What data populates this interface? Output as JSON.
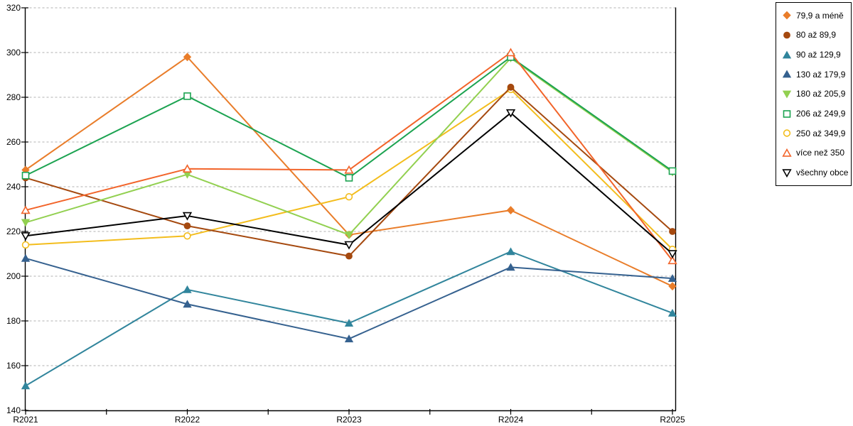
{
  "chart_data": {
    "type": "line",
    "title": "",
    "xlabel": "",
    "ylabel": "",
    "categories": [
      "R2021",
      "R2022",
      "R2023",
      "R2024",
      "R2025"
    ],
    "y_axis": {
      "min": 140,
      "max": 320,
      "step": 20,
      "tick_labels": [
        "140",
        "160",
        "180",
        "200",
        "220",
        "240",
        "260",
        "280",
        "300",
        "320"
      ]
    },
    "grid": {
      "horizontal": true,
      "style": "dashed"
    },
    "legend_position": "right",
    "series": [
      {
        "name": "79,9 a méně",
        "color": "#E97D2A",
        "marker": "diamond",
        "hollow": false,
        "values": [
          247.5,
          298,
          218.5,
          229.5,
          195.5
        ]
      },
      {
        "name": "80 až 89,9",
        "color": "#A5490F",
        "marker": "circle",
        "hollow": false,
        "values": [
          244,
          222.5,
          209,
          284.5,
          220
        ]
      },
      {
        "name": "90 až 129,9",
        "color": "#31859C",
        "marker": "triangle-up",
        "hollow": false,
        "values": [
          151,
          194,
          179,
          211,
          183.5
        ]
      },
      {
        "name": "130 až 179,9",
        "color": "#35618F",
        "marker": "triangle-up",
        "hollow": false,
        "values": [
          208,
          187.5,
          172,
          204,
          199
        ]
      },
      {
        "name": "180 až 205,9",
        "color": "#92D050",
        "marker": "triangle-down",
        "hollow": false,
        "values": [
          224,
          245.5,
          218.5,
          297.5,
          246.5
        ]
      },
      {
        "name": "206 až 249,9",
        "color": "#1CA351",
        "marker": "square",
        "hollow": true,
        "values": [
          245,
          280.5,
          244,
          298,
          247
        ]
      },
      {
        "name": "250 až 349,9",
        "color": "#F3BD1D",
        "marker": "circle",
        "hollow": true,
        "values": [
          214,
          218,
          235.5,
          283.5,
          212
        ]
      },
      {
        "name": "více než 350",
        "color": "#F2642A",
        "marker": "triangle-up",
        "hollow": true,
        "values": [
          229.5,
          248,
          247.5,
          300,
          207
        ]
      },
      {
        "name": "všechny obce",
        "color": "#000000",
        "marker": "triangle-down",
        "hollow": true,
        "values": [
          218,
          227,
          214,
          273,
          210
        ]
      }
    ]
  },
  "colors": {
    "background": "#ffffff",
    "grid": "#b0b0b0",
    "axis": "#000000",
    "legend_border": "#000000"
  }
}
